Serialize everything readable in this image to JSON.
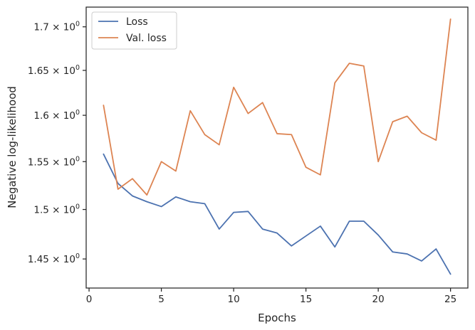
{
  "chart_data": {
    "type": "line",
    "xlabel": "Epochs",
    "ylabel": "Negative log-likelihood",
    "x": [
      1,
      2,
      3,
      4,
      5,
      6,
      7,
      8,
      9,
      10,
      11,
      12,
      13,
      14,
      15,
      16,
      17,
      18,
      19,
      20,
      21,
      22,
      23,
      24,
      25
    ],
    "xlim": [
      -0.2,
      26.2
    ],
    "ylim": [
      1.4214,
      1.7231
    ],
    "log_y": true,
    "x_ticks": [
      0,
      5,
      10,
      15,
      20,
      25
    ],
    "x_tick_labels": [
      "0",
      "5",
      "10",
      "15",
      "20",
      "25"
    ],
    "y_ticks": [
      1.45,
      1.5,
      1.55,
      1.6,
      1.65,
      1.7
    ],
    "y_tick_labels": [
      {
        "mantissa": "1.45",
        "base": "10",
        "exp": "0"
      },
      {
        "mantissa": "1.5",
        "base": "10",
        "exp": "0"
      },
      {
        "mantissa": "1.55",
        "base": "10",
        "exp": "0"
      },
      {
        "mantissa": "1.6",
        "base": "10",
        "exp": "0"
      },
      {
        "mantissa": "1.65",
        "base": "10",
        "exp": "0"
      },
      {
        "mantissa": "1.7",
        "base": "10",
        "exp": "0"
      }
    ],
    "legend_position": "top-left",
    "grid": false,
    "series": [
      {
        "name": "Loss",
        "color": "#4c72b0",
        "values": [
          1.558,
          1.527,
          1.514,
          1.508,
          1.503,
          1.513,
          1.508,
          1.506,
          1.48,
          1.497,
          1.498,
          1.48,
          1.476,
          1.463,
          1.473,
          1.483,
          1.462,
          1.488,
          1.488,
          1.474,
          1.457,
          1.455,
          1.448,
          1.46,
          1.435
        ]
      },
      {
        "name": "Val. loss",
        "color": "#dd8452",
        "values": [
          1.611,
          1.521,
          1.532,
          1.515,
          1.55,
          1.54,
          1.605,
          1.579,
          1.568,
          1.631,
          1.602,
          1.614,
          1.58,
          1.579,
          1.544,
          1.536,
          1.636,
          1.658,
          1.655,
          1.55,
          1.593,
          1.599,
          1.581,
          1.573,
          1.709
        ]
      }
    ]
  }
}
